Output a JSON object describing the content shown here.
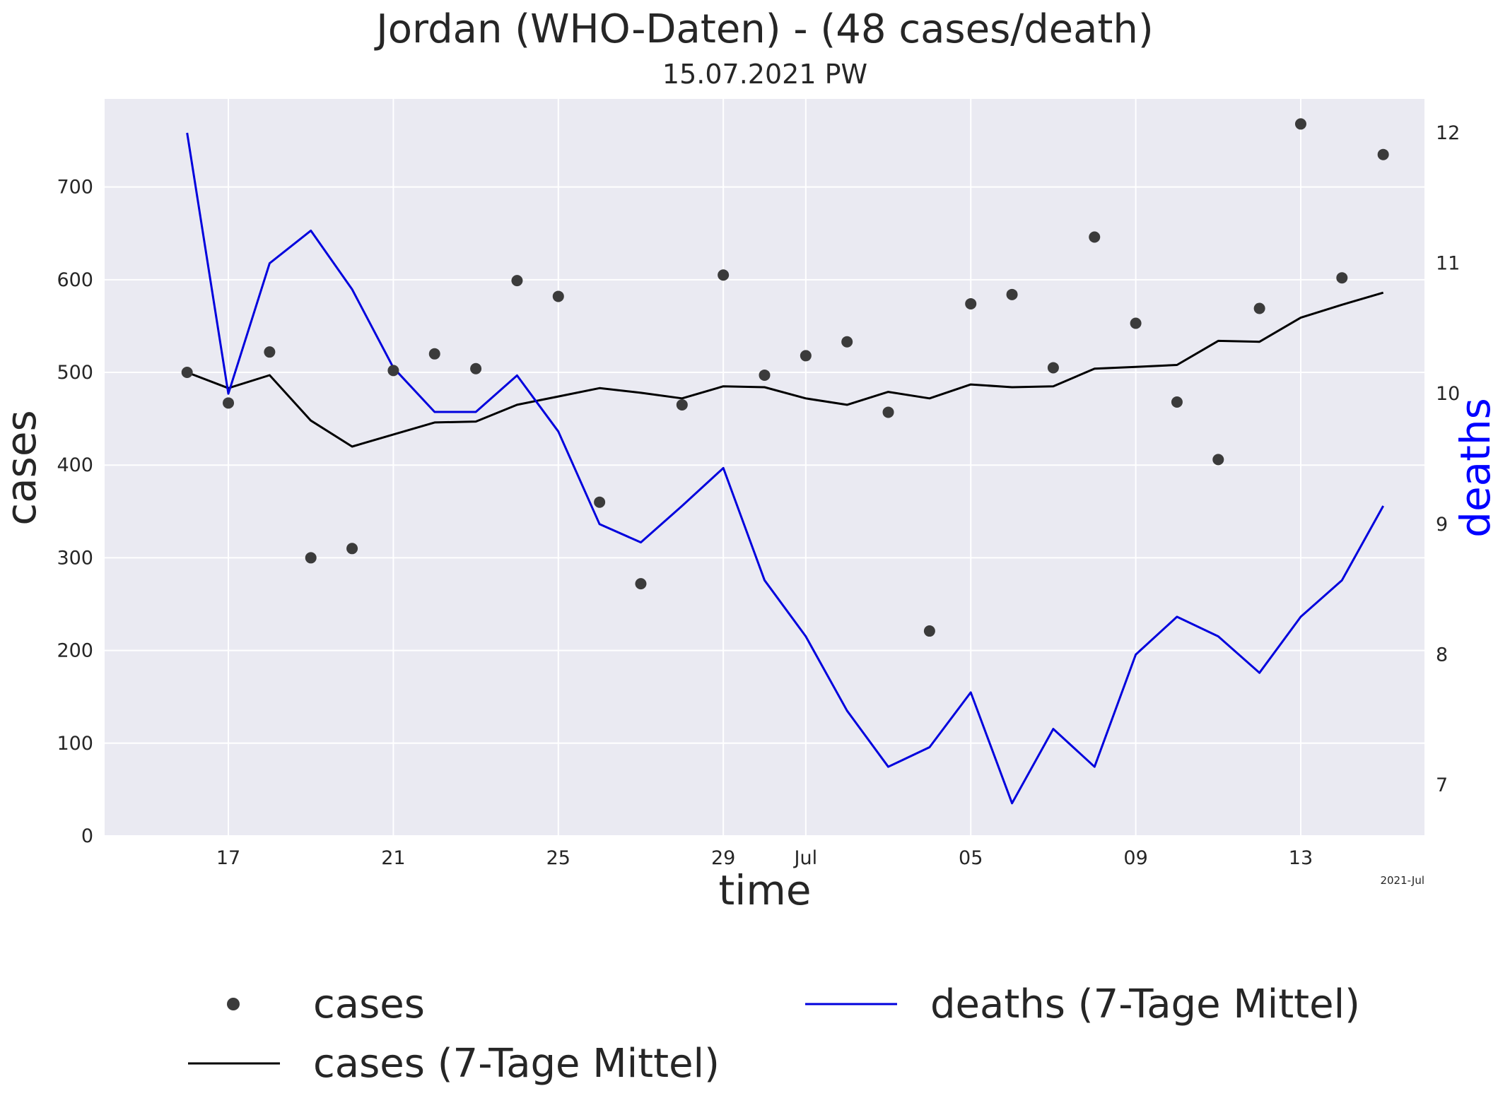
{
  "chart_data": {
    "type": "line",
    "title": "Jordan (WHO-Daten) - (48 cases/death)",
    "subtitle": "15.07.2021 PW",
    "xlabel": "time",
    "ylabel": "cases",
    "y2label": "deaths",
    "x_offset_label": "2021-Jul",
    "x": [
      "2021-06-16",
      "2021-06-17",
      "2021-06-18",
      "2021-06-19",
      "2021-06-20",
      "2021-06-21",
      "2021-06-22",
      "2021-06-23",
      "2021-06-24",
      "2021-06-25",
      "2021-06-26",
      "2021-06-27",
      "2021-06-28",
      "2021-06-29",
      "2021-06-30",
      "2021-07-01",
      "2021-07-02",
      "2021-07-03",
      "2021-07-04",
      "2021-07-05",
      "2021-07-06",
      "2021-07-07",
      "2021-07-08",
      "2021-07-09",
      "2021-07-10",
      "2021-07-11",
      "2021-07-12",
      "2021-07-13",
      "2021-07-14",
      "2021-07-15"
    ],
    "x_ticks": [
      {
        "date": "2021-06-17",
        "label": "17"
      },
      {
        "date": "2021-06-21",
        "label": "21"
      },
      {
        "date": "2021-06-25",
        "label": "25"
      },
      {
        "date": "2021-06-29",
        "label": "29"
      },
      {
        "date": "2021-07-01",
        "label": "Jul"
      },
      {
        "date": "2021-07-05",
        "label": "05"
      },
      {
        "date": "2021-07-09",
        "label": "09"
      },
      {
        "date": "2021-07-13",
        "label": "13"
      }
    ],
    "xlim": [
      "2021-06-14",
      "2021-07-16"
    ],
    "ylim": [
      0,
      795
    ],
    "y_ticks": [
      0,
      100,
      200,
      300,
      400,
      500,
      600,
      700
    ],
    "y2lim": [
      6.61,
      12.26
    ],
    "y2_ticks": [
      7,
      8,
      9,
      10,
      11,
      12
    ],
    "grid": true,
    "legend_position": "bottom",
    "series": [
      {
        "name": "cases",
        "axis": "left",
        "style": "scatter",
        "color": "#3b3b3b",
        "values": [
          500,
          467,
          522,
          300,
          310,
          502,
          520,
          504,
          599,
          582,
          360,
          272,
          465,
          605,
          497,
          518,
          533,
          457,
          221,
          574,
          584,
          505,
          646,
          553,
          468,
          406,
          569,
          768,
          602,
          735
        ]
      },
      {
        "name": "cases (7-Tage Mittel)",
        "axis": "left",
        "style": "line",
        "color": "#000000",
        "values": [
          500,
          483,
          497,
          448,
          420,
          433,
          446,
          447,
          465,
          474,
          483,
          478,
          472,
          485,
          484,
          472,
          465,
          479,
          472,
          487,
          484,
          485,
          504,
          506,
          508,
          534,
          533,
          559,
          573,
          586
        ]
      },
      {
        "name": "deaths (7-Tage Mittel)",
        "axis": "right",
        "style": "line",
        "color": "#0000dd",
        "values": [
          12.0,
          10.0,
          11.0,
          11.25,
          10.8,
          10.2,
          9.86,
          9.86,
          10.14,
          9.71,
          9.0,
          8.86,
          9.14,
          9.43,
          8.57,
          8.14,
          7.57,
          7.14,
          7.29,
          7.71,
          6.86,
          7.43,
          7.14,
          8.0,
          8.29,
          8.14,
          7.86,
          8.29,
          8.57,
          9.14
        ]
      }
    ]
  }
}
